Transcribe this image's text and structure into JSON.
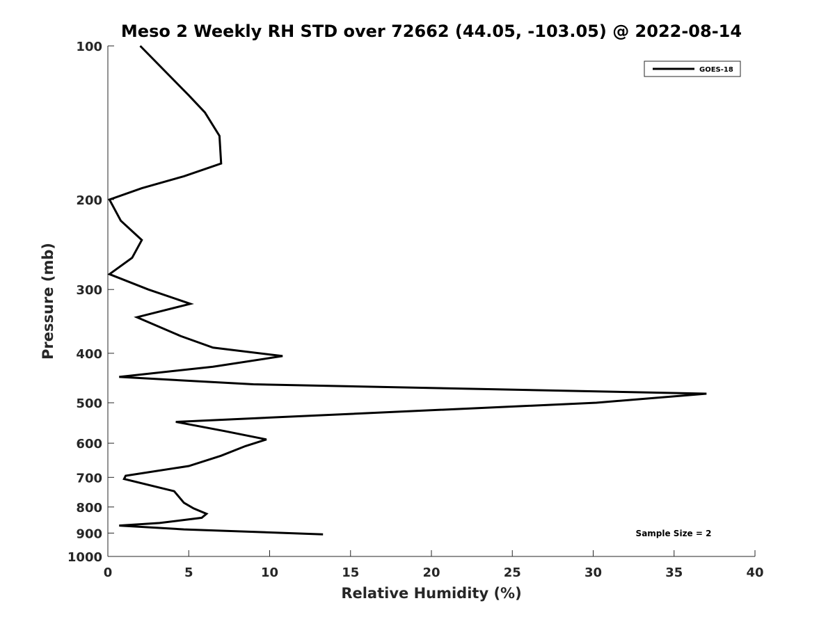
{
  "chart_data": {
    "type": "line",
    "title": "Meso 2 Weekly RH STD over 72662 (44.05, -103.05) @ 2022-08-14",
    "xlabel": "Relative Humidity (%)",
    "ylabel": "Pressure (mb)",
    "xlim": [
      0,
      40
    ],
    "ylim": [
      100,
      1000
    ],
    "y_scale": "log",
    "y_reversed": true,
    "grid": false,
    "legend_position": "top-right",
    "x_ticks": [
      0,
      5,
      10,
      15,
      20,
      25,
      30,
      35,
      40
    ],
    "y_ticks": [
      100,
      200,
      300,
      400,
      500,
      600,
      700,
      800,
      900,
      1000
    ],
    "annotation": "Sample Size = 2",
    "series": [
      {
        "name": "GOES-18",
        "color": "#000000",
        "points": [
          [
            2.0,
            100
          ],
          [
            5.0,
            125
          ],
          [
            6.0,
            135
          ],
          [
            6.9,
            150
          ],
          [
            7.0,
            170
          ],
          [
            4.7,
            180
          ],
          [
            2.1,
            190
          ],
          [
            0.1,
            200
          ],
          [
            0.8,
            220
          ],
          [
            2.1,
            240
          ],
          [
            1.5,
            260
          ],
          [
            0.1,
            280
          ],
          [
            2.5,
            300
          ],
          [
            5.1,
            320
          ],
          [
            1.8,
            340
          ],
          [
            4.5,
            370
          ],
          [
            6.5,
            390
          ],
          [
            10.8,
            405
          ],
          [
            6.5,
            425
          ],
          [
            0.7,
            445
          ],
          [
            9.0,
            460
          ],
          [
            37.0,
            480
          ],
          [
            30.2,
            500
          ],
          [
            4.2,
            545
          ],
          [
            7.2,
            568
          ],
          [
            9.8,
            590
          ],
          [
            8.5,
            608
          ],
          [
            7.0,
            635
          ],
          [
            5.0,
            665
          ],
          [
            1.1,
            695
          ],
          [
            1.0,
            705
          ],
          [
            4.1,
            745
          ],
          [
            4.7,
            785
          ],
          [
            5.3,
            805
          ],
          [
            6.1,
            825
          ],
          [
            5.8,
            840
          ],
          [
            3.2,
            860
          ],
          [
            0.7,
            870
          ],
          [
            4.7,
            885
          ],
          [
            13.3,
            905
          ]
        ]
      }
    ]
  }
}
